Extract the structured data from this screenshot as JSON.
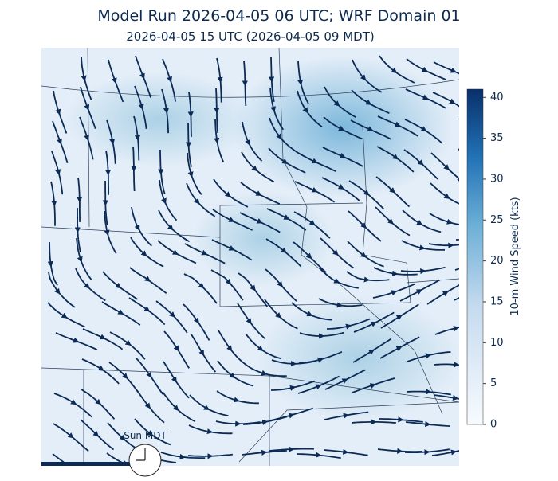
{
  "header": {
    "title": "Model Run 2026-04-05 06 UTC; WRF Domain 01",
    "subtitle": "2026-04-05 15 UTC  (2026-04-05 09 MDT)"
  },
  "colorbar": {
    "label": "10-m Wind Speed (kts)",
    "ylim": [
      0,
      41
    ],
    "yticks": [
      0,
      5,
      10,
      15,
      20,
      25,
      30,
      35,
      40
    ],
    "colors": [
      "#f7fbff",
      "#08306b"
    ]
  },
  "clock": {
    "label": "Sun MDT"
  }
}
